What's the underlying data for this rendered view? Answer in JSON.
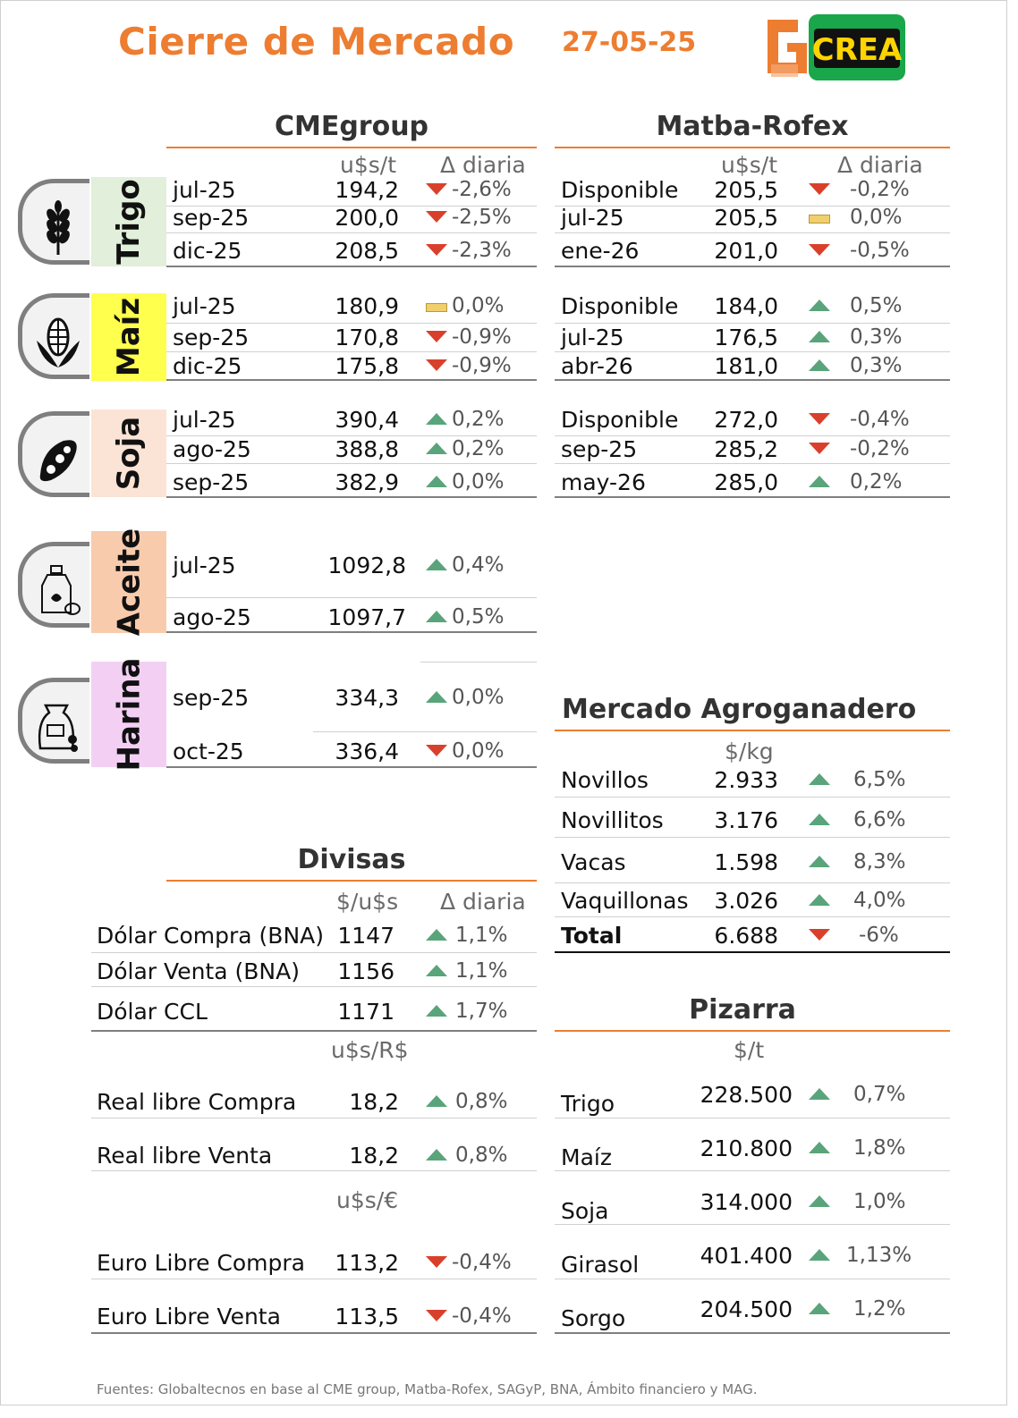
{
  "header": {
    "title": "Cierre de Mercado",
    "date": "27-05-25",
    "logo_text": "CREA"
  },
  "cme": {
    "title": "CMEgroup",
    "unit_header": "u$s/t",
    "delta_header": "Δ diaria",
    "groups": [
      {
        "label": "Trigo",
        "icon": "wheat-icon",
        "color": "#e2efda",
        "rows": [
          {
            "month": "jul-25",
            "value": "194,2",
            "dir": "down",
            "pct": "-2,6%"
          },
          {
            "month": "sep-25",
            "value": "200,0",
            "dir": "down",
            "pct": "-2,5%"
          },
          {
            "month": "dic-25",
            "value": "208,5",
            "dir": "down",
            "pct": "-2,3%"
          }
        ]
      },
      {
        "label": "Maíz",
        "icon": "corn-icon",
        "color": "#ffff4d",
        "rows": [
          {
            "month": "jul-25",
            "value": "180,9",
            "dir": "flat",
            "pct": "0,0%"
          },
          {
            "month": "sep-25",
            "value": "170,8",
            "dir": "down",
            "pct": "-0,9%"
          },
          {
            "month": "dic-25",
            "value": "175,8",
            "dir": "down",
            "pct": "-0,9%"
          }
        ]
      },
      {
        "label": "Soja",
        "icon": "soybean-icon",
        "color": "#fbe4d5",
        "rows": [
          {
            "month": "jul-25",
            "value": "390,4",
            "dir": "up",
            "pct": "0,2%"
          },
          {
            "month": "ago-25",
            "value": "388,8",
            "dir": "up",
            "pct": "0,2%"
          },
          {
            "month": "sep-25",
            "value": "382,9",
            "dir": "up",
            "pct": "0,0%"
          }
        ]
      },
      {
        "label": "Aceite",
        "icon": "oil-icon",
        "color": "#f8cbad",
        "rows": [
          {
            "month": "jul-25",
            "value": "1092,8",
            "dir": "up",
            "pct": "0,4%"
          },
          {
            "month": "ago-25",
            "value": "1097,7",
            "dir": "up",
            "pct": "0,5%"
          }
        ]
      },
      {
        "label": "Harina",
        "icon": "flour-sack-icon",
        "color": "#f3d0f3",
        "rows": [
          {
            "month": "sep-25",
            "value": "334,3",
            "dir": "up",
            "pct": "0,0%"
          },
          {
            "month": "oct-25",
            "value": "336,4",
            "dir": "down",
            "pct": "0,0%"
          }
        ]
      }
    ]
  },
  "matba": {
    "title": "Matba-Rofex",
    "unit_header": "u$s/t",
    "delta_header": "Δ diaria",
    "groups": [
      [
        {
          "month": "Disponible",
          "value": "205,5",
          "dir": "down",
          "pct": "-0,2%"
        },
        {
          "month": "jul-25",
          "value": "205,5",
          "dir": "flat",
          "pct": "0,0%"
        },
        {
          "month": "ene-26",
          "value": "201,0",
          "dir": "down",
          "pct": "-0,5%"
        }
      ],
      [
        {
          "month": "Disponible",
          "value": "184,0",
          "dir": "up",
          "pct": "0,5%"
        },
        {
          "month": "jul-25",
          "value": "176,5",
          "dir": "up",
          "pct": "0,3%"
        },
        {
          "month": "abr-26",
          "value": "181,0",
          "dir": "up",
          "pct": "0,3%"
        }
      ],
      [
        {
          "month": "Disponible",
          "value": "272,0",
          "dir": "down",
          "pct": "-0,4%"
        },
        {
          "month": "sep-25",
          "value": "285,2",
          "dir": "down",
          "pct": "-0,2%"
        },
        {
          "month": "may-26",
          "value": "285,0",
          "dir": "up",
          "pct": "0,2%"
        }
      ]
    ]
  },
  "divisas": {
    "title": "Divisas",
    "unit_header": "$/u$s",
    "delta_header": "Δ diaria",
    "rows": [
      {
        "label": "Dólar Compra (BNA)",
        "value": "1147",
        "dir": "up",
        "pct": "1,1%"
      },
      {
        "label": "Dólar Venta (BNA)",
        "value": "1156",
        "dir": "up",
        "pct": "1,1%"
      },
      {
        "label": "Dólar CCL",
        "value": "1171",
        "dir": "up",
        "pct": "1,7%"
      }
    ],
    "real_header": "u$s/R$",
    "real_rows": [
      {
        "label": "Real libre Compra",
        "value": "18,2",
        "dir": "up",
        "pct": "0,8%"
      },
      {
        "label": "Real libre Venta",
        "value": "18,2",
        "dir": "up",
        "pct": "0,8%"
      }
    ],
    "euro_header": "u$s/€",
    "euro_rows": [
      {
        "label": "Euro Libre Compra",
        "value": "113,2",
        "dir": "down",
        "pct": "-0,4%"
      },
      {
        "label": "Euro Libre Venta",
        "value": "113,5",
        "dir": "down",
        "pct": "-0,4%"
      }
    ]
  },
  "agroganadero": {
    "title": "Mercado Agroganadero",
    "unit_header": "$/kg",
    "rows": [
      {
        "label": "Novillos",
        "value": "2.933",
        "dir": "up",
        "pct": "6,5%"
      },
      {
        "label": "Novillitos",
        "value": "3.176",
        "dir": "up",
        "pct": "6,6%"
      },
      {
        "label": "Vacas",
        "value": "1.598",
        "dir": "up",
        "pct": "8,3%"
      },
      {
        "label": "Vaquillonas",
        "value": "3.026",
        "dir": "up",
        "pct": "4,0%"
      },
      {
        "label": "Total",
        "value": "6.688",
        "dir": "down",
        "pct": "-6%"
      }
    ]
  },
  "pizarra": {
    "title": "Pizarra",
    "unit_header": "$/t",
    "rows": [
      {
        "label": "Trigo",
        "value": "228.500",
        "dir": "up",
        "pct": "0,7%"
      },
      {
        "label": "Maíz",
        "value": "210.800",
        "dir": "up",
        "pct": "1,8%"
      },
      {
        "label": "Soja",
        "value": "314.000",
        "dir": "up",
        "pct": "1,0%"
      },
      {
        "label": "Girasol",
        "value": "401.400",
        "dir": "up",
        "pct": "1,13%"
      },
      {
        "label": "Sorgo",
        "value": "204.500",
        "dir": "up",
        "pct": "1,2%"
      }
    ]
  },
  "footer": "Fuentes: Globaltecnos en base al CME group, Matba-Rofex, SAGyP, BNA, Ámbito financiero y MAG."
}
